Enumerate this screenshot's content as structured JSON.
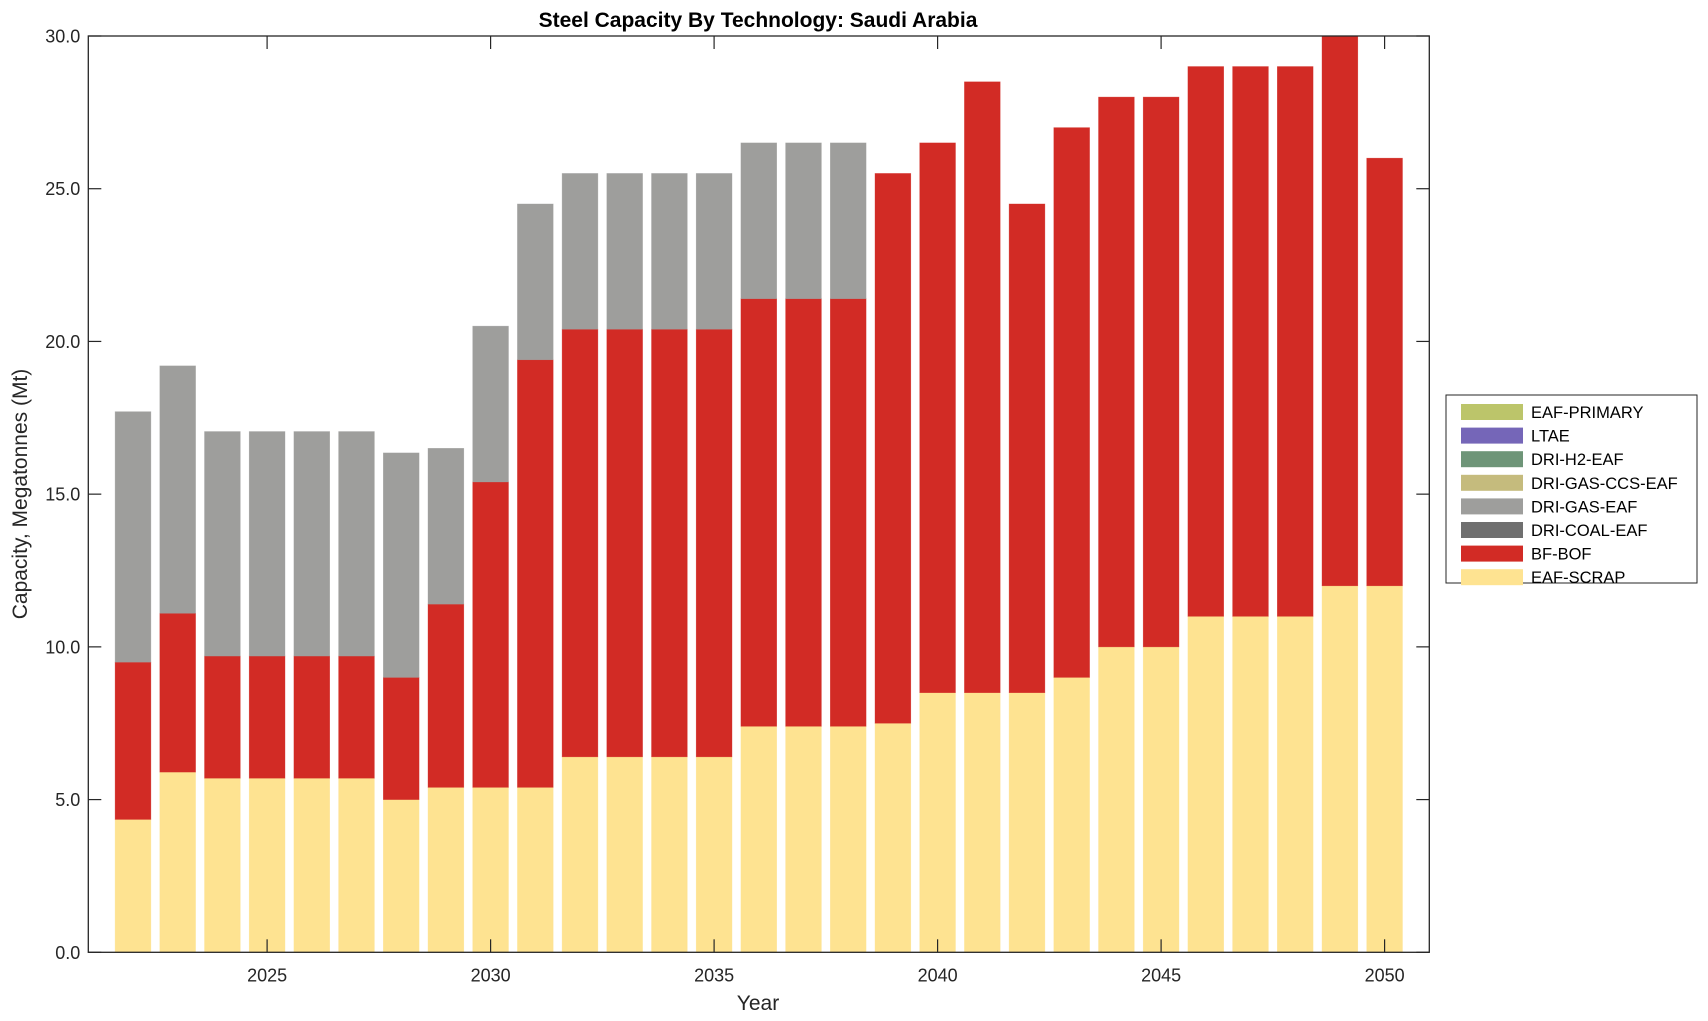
{
  "chart_data": {
    "type": "bar",
    "stacked": true,
    "title": "Steel Capacity By Technology: Saudi Arabia",
    "xlabel": "Year",
    "ylabel": "Capacity, Megatonnes (Mt)",
    "xlim": [
      2021,
      2051
    ],
    "ylim": [
      0,
      30
    ],
    "xticks": [
      2025,
      2030,
      2035,
      2040,
      2045,
      2050
    ],
    "yticks": [
      0,
      5,
      10,
      15,
      20,
      25,
      30
    ],
    "ytick_labels": [
      "0.0",
      "5.0",
      "10.0",
      "15.0",
      "20.0",
      "25.0",
      "30.0"
    ],
    "grid": false,
    "legend_position": "right-outside",
    "x": [
      2022,
      2023,
      2024,
      2025,
      2026,
      2027,
      2028,
      2029,
      2030,
      2031,
      2032,
      2033,
      2034,
      2035,
      2036,
      2037,
      2038,
      2039,
      2040,
      2041,
      2042,
      2043,
      2044,
      2045,
      2046,
      2047,
      2048,
      2049,
      2050
    ],
    "series": [
      {
        "name": "EAF-SCRAP",
        "color": "#FEE391",
        "values": [
          4.35,
          5.9,
          5.7,
          5.7,
          5.7,
          5.7,
          5.0,
          5.4,
          5.4,
          5.4,
          6.4,
          6.4,
          6.4,
          6.4,
          7.4,
          7.4,
          7.4,
          7.5,
          8.5,
          8.5,
          8.5,
          9.0,
          10.0,
          10.0,
          11.0,
          11.0,
          11.0,
          12.0,
          12.0
        ]
      },
      {
        "name": "BF-BOF",
        "color": "#D22B25",
        "values": [
          5.15,
          5.2,
          4.0,
          4.0,
          4.0,
          4.0,
          4.0,
          6.0,
          10.0,
          14.0,
          14.0,
          14.0,
          14.0,
          14.0,
          14.0,
          14.0,
          14.0,
          18.0,
          18.0,
          20.0,
          16.0,
          18.0,
          18.0,
          18.0,
          18.0,
          18.0,
          18.0,
          18.0,
          14.0
        ]
      },
      {
        "name": "DRI-COAL-EAF",
        "color": "#6F6F6F",
        "values": [
          0,
          0,
          0,
          0,
          0,
          0,
          0,
          0,
          0,
          0,
          0,
          0,
          0,
          0,
          0,
          0,
          0,
          0,
          0,
          0,
          0,
          0,
          0,
          0,
          0,
          0,
          0,
          0,
          0
        ]
      },
      {
        "name": "DRI-GAS-EAF",
        "color": "#9E9E9C",
        "values": [
          8.2,
          8.1,
          7.35,
          7.35,
          7.35,
          7.35,
          7.35,
          5.1,
          5.1,
          5.1,
          5.1,
          5.1,
          5.1,
          5.1,
          5.1,
          5.1,
          5.1,
          0,
          0,
          0,
          0,
          0,
          0,
          0,
          0,
          0,
          0,
          0,
          0
        ]
      },
      {
        "name": "DRI-GAS-CCS-EAF",
        "color": "#C5BB7D",
        "values": [
          0,
          0,
          0,
          0,
          0,
          0,
          0,
          0,
          0,
          0,
          0,
          0,
          0,
          0,
          0,
          0,
          0,
          0,
          0,
          0,
          0,
          0,
          0,
          0,
          0,
          0,
          0,
          0,
          0
        ]
      },
      {
        "name": "DRI-H2-EAF",
        "color": "#6E9578",
        "values": [
          0,
          0,
          0,
          0,
          0,
          0,
          0,
          0,
          0,
          0,
          0,
          0,
          0,
          0,
          0,
          0,
          0,
          0,
          0,
          0,
          0,
          0,
          0,
          0,
          0,
          0,
          0,
          0,
          0
        ]
      },
      {
        "name": "LTAE",
        "color": "#7566B8",
        "values": [
          0,
          0,
          0,
          0,
          0,
          0,
          0,
          0,
          0,
          0,
          0,
          0,
          0,
          0,
          0,
          0,
          0,
          0,
          0,
          0,
          0,
          0,
          0,
          0,
          0,
          0,
          0,
          0,
          0
        ]
      },
      {
        "name": "EAF-PRIMARY",
        "color": "#BCC56A",
        "values": [
          0,
          0,
          0,
          0,
          0,
          0,
          0,
          0,
          0,
          0,
          0,
          0,
          0,
          0,
          0,
          0,
          0,
          0,
          0,
          0,
          0,
          0,
          0,
          0,
          0,
          0,
          0,
          0,
          0
        ]
      }
    ],
    "legend_order": [
      "EAF-PRIMARY",
      "LTAE",
      "DRI-H2-EAF",
      "DRI-GAS-CCS-EAF",
      "DRI-GAS-EAF",
      "DRI-COAL-EAF",
      "BF-BOF",
      "EAF-SCRAP"
    ]
  }
}
